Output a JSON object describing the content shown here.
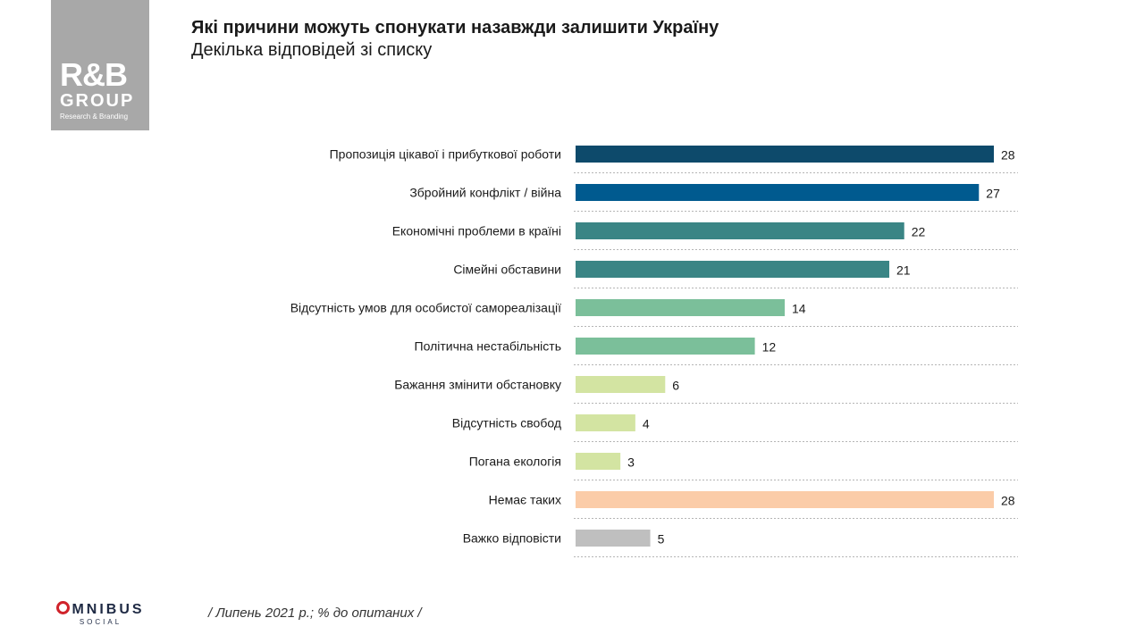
{
  "logo": {
    "mark": "R&B",
    "group": "GROUP",
    "tagline": "Research & Branding"
  },
  "title": "Які причини можуть спонукати назавжди залишити Україну",
  "subtitle": "Декілька відповідей  зі списку",
  "footnote": "/ Липень 2021 р.; % до опитаних /",
  "omnibus": {
    "word": "MNIBUS",
    "sub": "SOCIAL"
  },
  "chart_data": {
    "type": "bar",
    "orientation": "horizontal",
    "categories": [
      "Пропозиція цікавої і прибуткової роботи",
      "Збройний конфлікт / війна",
      "Економічні проблеми в країні",
      "Сімейні обставини",
      "Відсутність умов для особистої самореалізації",
      "Політична нестабільність",
      "Бажання змінити обстановку",
      "Відсутність свобод",
      "Погана екологія",
      "Немає таких",
      "Важко відповісти"
    ],
    "values": [
      28,
      27,
      22,
      21,
      14,
      12,
      6,
      4,
      3,
      28,
      5
    ],
    "colors": [
      "#0d4a6b",
      "#005a8f",
      "#3a8585",
      "#3a8585",
      "#7bbf9a",
      "#7bbf9a",
      "#d3e4a2",
      "#d3e4a2",
      "#d3e4a2",
      "#fbcca8",
      "#bfbfbf"
    ],
    "xlim": [
      0,
      30
    ],
    "grid": false,
    "legend": "none"
  }
}
